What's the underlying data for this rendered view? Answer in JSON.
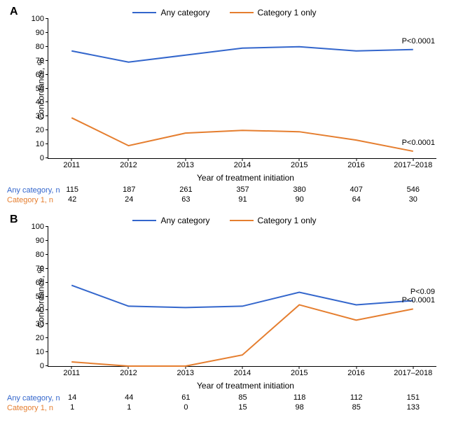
{
  "legend": {
    "series1": "Any category",
    "series2": "Category 1 only"
  },
  "colors": {
    "series1": "#3366cc",
    "series2": "#e57e2f",
    "axis": "#000000",
    "text": "#000000"
  },
  "line_width": 2,
  "ylabel": "Concordance, %",
  "xlabel": "Year of treatment initiation",
  "y_axis": {
    "min": 0,
    "max": 100,
    "ticks": [
      0,
      10,
      20,
      30,
      40,
      50,
      60,
      70,
      80,
      90,
      100
    ]
  },
  "x_categories": [
    "2011",
    "2012",
    "2013",
    "2014",
    "2015",
    "2016",
    "2017–2018"
  ],
  "panels": {
    "A": {
      "label": "A",
      "series1_values": [
        77,
        69,
        74,
        79,
        80,
        77,
        78
      ],
      "series2_values": [
        29,
        9,
        18,
        20,
        19,
        13,
        5
      ],
      "pvalue1": "P<0.0001",
      "pvalue2": "P<0.0001",
      "n_any": [
        115,
        187,
        261,
        357,
        380,
        407,
        546
      ],
      "n_cat1": [
        42,
        24,
        63,
        91,
        90,
        64,
        30
      ],
      "n_any_label": "Any category, n",
      "n_cat1_label": "Category 1, n"
    },
    "B": {
      "label": "B",
      "series1_values": [
        58,
        43,
        42,
        43,
        53,
        44,
        47
      ],
      "series2_values": [
        3,
        0,
        0,
        8,
        44,
        33,
        41
      ],
      "pvalue1": "P<0.09",
      "pvalue2": "P<0.0001",
      "n_any": [
        14,
        44,
        61,
        85,
        118,
        112,
        151
      ],
      "n_cat1": [
        1,
        1,
        0,
        15,
        98,
        85,
        133
      ],
      "n_any_label": "Any category, n",
      "n_cat1_label": "Category 1, n"
    }
  }
}
